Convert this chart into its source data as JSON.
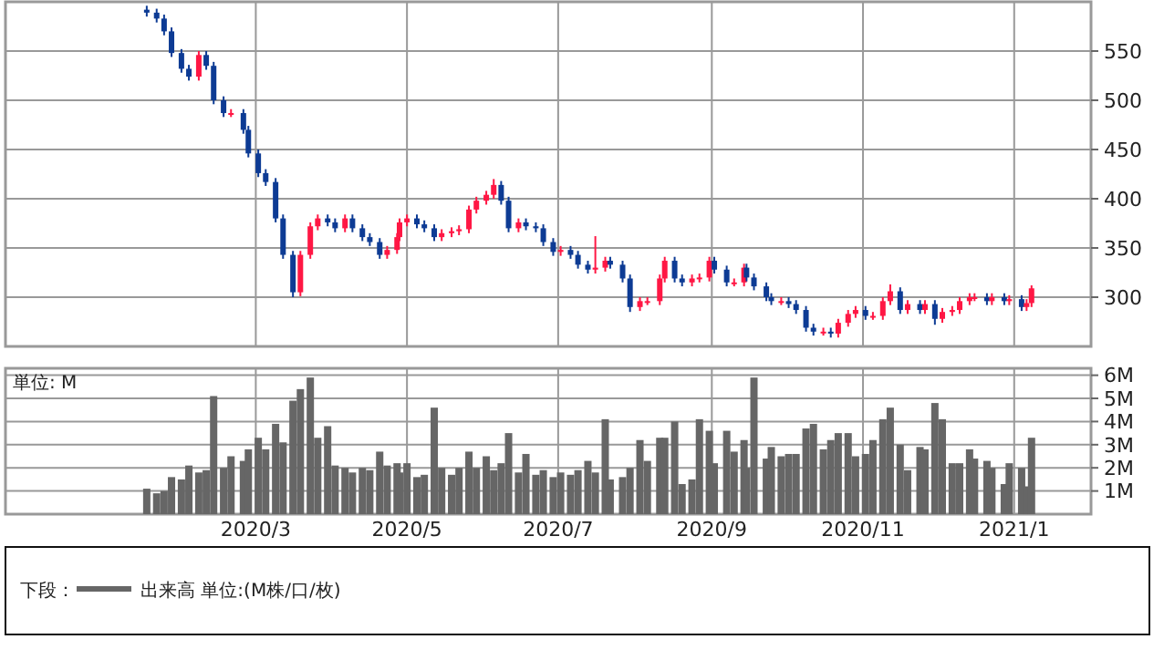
{
  "chart_data": [
    {
      "type": "candlestick",
      "xlim": [
        "2019-11-21",
        "2021-02-01"
      ],
      "ylim": [
        250,
        600
      ],
      "yticks": [
        300,
        350,
        400,
        450,
        500,
        550
      ],
      "grid": true,
      "tick_labels": "y",
      "xticks": [
        "2020-03-01",
        "2020-05-01",
        "2020-07-01",
        "2020-09-01",
        "2020-11-01",
        "2021-01-01"
      ],
      "x": [
        "2020-01-17",
        "2020-01-21",
        "2020-01-24",
        "2020-01-27",
        "2020-01-31",
        "2020-02-03",
        "2020-02-07",
        "2020-02-10",
        "2020-02-13",
        "2020-02-17",
        "2020-02-20",
        "2020-02-25",
        "2020-02-27",
        "2020-03-02",
        "2020-03-05",
        "2020-03-09",
        "2020-03-12",
        "2020-03-16",
        "2020-03-19",
        "2020-03-23",
        "2020-03-26",
        "2020-03-30",
        "2020-04-02",
        "2020-04-06",
        "2020-04-09",
        "2020-04-13",
        "2020-04-16",
        "2020-04-20",
        "2020-04-23",
        "2020-04-27",
        "2020-04-28",
        "2020-05-01",
        "2020-05-05",
        "2020-05-08",
        "2020-05-12",
        "2020-05-15",
        "2020-05-19",
        "2020-05-22",
        "2020-05-26",
        "2020-05-29",
        "2020-06-02",
        "2020-06-05",
        "2020-06-08",
        "2020-06-11",
        "2020-06-15",
        "2020-06-18",
        "2020-06-22",
        "2020-06-25",
        "2020-06-29",
        "2020-07-02",
        "2020-07-06",
        "2020-07-09",
        "2020-07-13",
        "2020-07-16",
        "2020-07-20",
        "2020-07-22",
        "2020-07-27",
        "2020-07-30",
        "2020-08-03",
        "2020-08-06",
        "2020-08-11",
        "2020-08-13",
        "2020-08-17",
        "2020-08-20",
        "2020-08-24",
        "2020-08-27",
        "2020-08-31",
        "2020-09-02",
        "2020-09-07",
        "2020-09-10",
        "2020-09-14",
        "2020-09-15",
        "2020-09-18",
        "2020-09-23",
        "2020-09-25",
        "2020-09-29",
        "2020-10-02",
        "2020-10-05",
        "2020-10-09",
        "2020-10-12",
        "2020-10-16",
        "2020-10-19",
        "2020-10-22",
        "2020-10-26",
        "2020-10-29",
        "2020-11-02",
        "2020-11-05",
        "2020-11-09",
        "2020-11-12",
        "2020-11-16",
        "2020-11-19",
        "2020-11-24",
        "2020-11-26",
        "2020-11-30",
        "2020-12-03",
        "2020-12-07",
        "2020-12-10",
        "2020-12-14",
        "2020-12-16",
        "2020-12-21",
        "2020-12-23",
        "2020-12-28",
        "2020-12-30",
        "2021-01-04",
        "2021-01-06",
        "2021-01-08"
      ],
      "ohlc": [
        [
          592,
          596,
          585,
          589
        ],
        [
          589,
          593,
          579,
          583
        ],
        [
          583,
          587,
          566,
          570
        ],
        [
          570,
          574,
          544,
          548
        ],
        [
          548,
          552,
          528,
          532
        ],
        [
          532,
          536,
          520,
          524
        ],
        [
          524,
          550,
          520,
          546
        ],
        [
          546,
          550,
          531,
          535
        ],
        [
          535,
          539,
          496,
          500
        ],
        [
          500,
          504,
          483,
          487
        ],
        [
          487,
          491,
          483,
          487
        ],
        [
          487,
          491,
          466,
          470
        ],
        [
          470,
          474,
          442,
          446
        ],
        [
          446,
          450,
          422,
          426
        ],
        [
          426,
          430,
          413,
          417
        ],
        [
          417,
          421,
          376,
          380
        ],
        [
          380,
          384,
          339,
          343
        ],
        [
          343,
          347,
          300,
          305
        ],
        [
          305,
          347,
          301,
          343
        ],
        [
          343,
          376,
          339,
          372
        ],
        [
          372,
          384,
          368,
          380
        ],
        [
          380,
          384,
          372,
          376
        ],
        [
          376,
          380,
          366,
          370
        ],
        [
          370,
          384,
          366,
          380
        ],
        [
          380,
          384,
          366,
          370
        ],
        [
          370,
          374,
          357,
          361
        ],
        [
          361,
          365,
          352,
          356
        ],
        [
          356,
          360,
          339,
          343
        ],
        [
          343,
          352,
          339,
          348
        ],
        [
          348,
          365,
          344,
          361
        ],
        [
          361,
          380,
          357,
          376
        ],
        [
          376,
          384,
          372,
          380
        ],
        [
          380,
          384,
          370,
          374
        ],
        [
          374,
          378,
          366,
          370
        ],
        [
          370,
          374,
          357,
          361
        ],
        [
          361,
          369,
          357,
          365
        ],
        [
          365,
          371,
          361,
          367
        ],
        [
          367,
          373,
          363,
          369
        ],
        [
          369,
          393,
          365,
          389
        ],
        [
          389,
          402,
          385,
          398
        ],
        [
          398,
          408,
          394,
          404
        ],
        [
          404,
          420,
          400,
          414
        ],
        [
          414,
          418,
          394,
          398
        ],
        [
          398,
          402,
          366,
          370
        ],
        [
          370,
          380,
          366,
          376
        ],
        [
          376,
          380,
          368,
          372
        ],
        [
          372,
          376,
          366,
          370
        ],
        [
          370,
          374,
          352,
          356
        ],
        [
          356,
          360,
          342,
          346
        ],
        [
          346,
          352,
          342,
          348
        ],
        [
          348,
          352,
          339,
          343
        ],
        [
          343,
          347,
          329,
          333
        ],
        [
          333,
          337,
          324,
          328
        ],
        [
          328,
          362,
          324,
          330
        ],
        [
          330,
          341,
          326,
          337
        ],
        [
          337,
          341,
          329,
          333
        ],
        [
          333,
          337,
          315,
          319
        ],
        [
          319,
          323,
          285,
          290
        ],
        [
          290,
          300,
          286,
          296
        ],
        [
          296,
          300,
          292,
          296
        ],
        [
          296,
          323,
          292,
          319
        ],
        [
          319,
          341,
          315,
          337
        ],
        [
          337,
          341,
          315,
          319
        ],
        [
          319,
          323,
          311,
          315
        ],
        [
          315,
          323,
          311,
          319
        ],
        [
          319,
          324,
          315,
          320
        ],
        [
          320,
          341,
          316,
          337
        ],
        [
          337,
          341,
          324,
          328
        ],
        [
          328,
          332,
          311,
          315
        ],
        [
          315,
          319,
          311,
          315
        ],
        [
          315,
          334,
          311,
          330
        ],
        [
          330,
          334,
          316,
          320
        ],
        [
          320,
          324,
          307,
          311
        ],
        [
          311,
          315,
          296,
          300
        ],
        [
          300,
          304,
          292,
          296
        ],
        [
          296,
          300,
          292,
          296
        ],
        [
          296,
          300,
          289,
          293
        ],
        [
          293,
          297,
          283,
          287
        ],
        [
          287,
          291,
          265,
          269
        ],
        [
          269,
          273,
          261,
          265
        ],
        [
          265,
          269,
          261,
          265
        ],
        [
          265,
          269,
          259,
          263
        ],
        [
          263,
          278,
          259,
          274
        ],
        [
          274,
          287,
          270,
          283
        ],
        [
          283,
          291,
          279,
          287
        ],
        [
          287,
          291,
          277,
          281
        ],
        [
          281,
          285,
          277,
          281
        ],
        [
          281,
          300,
          277,
          296
        ],
        [
          296,
          313,
          292,
          306
        ],
        [
          306,
          310,
          283,
          287
        ],
        [
          287,
          297,
          283,
          293
        ],
        [
          293,
          297,
          283,
          287
        ],
        [
          287,
          297,
          283,
          293
        ],
        [
          293,
          297,
          272,
          278
        ],
        [
          278,
          289,
          274,
          285
        ],
        [
          285,
          291,
          281,
          287
        ],
        [
          287,
          300,
          283,
          296
        ],
        [
          296,
          304,
          292,
          300
        ],
        [
          300,
          304,
          296,
          300
        ],
        [
          300,
          304,
          292,
          296
        ],
        [
          296,
          304,
          292,
          300
        ],
        [
          300,
          304,
          292,
          296
        ],
        [
          296,
          302,
          292,
          298
        ],
        [
          298,
          302,
          286,
          290
        ],
        [
          290,
          298,
          286,
          294
        ],
        [
          294,
          312,
          290,
          309
        ]
      ]
    },
    {
      "type": "bar",
      "xlim": [
        "2019-11-21",
        "2021-02-01"
      ],
      "ylim": [
        0,
        6.3
      ],
      "grid": true,
      "legend": "bottom",
      "legend_title": "下段：",
      "annotations": [
        "単位: M"
      ],
      "yticks": [
        {
          "value": 1,
          "label": "1M"
        },
        {
          "value": 2,
          "label": "2M"
        },
        {
          "value": 3,
          "label": "3M"
        },
        {
          "value": 4,
          "label": "4M"
        },
        {
          "value": 5,
          "label": "5M"
        },
        {
          "value": 6,
          "label": "6M"
        }
      ],
      "xticks": [
        {
          "value": "2020-03-01",
          "label": "2020/3"
        },
        {
          "value": "2020-05-01",
          "label": "2020/5"
        },
        {
          "value": "2020-07-01",
          "label": "2020/7"
        },
        {
          "value": "2020-09-01",
          "label": "2020/9"
        },
        {
          "value": "2020-11-01",
          "label": "2020/11"
        },
        {
          "value": "2021-01-01",
          "label": "2021/1"
        }
      ],
      "x": [
        "2020-01-17",
        "2020-01-21",
        "2020-01-24",
        "2020-01-27",
        "2020-01-31",
        "2020-02-03",
        "2020-02-07",
        "2020-02-10",
        "2020-02-13",
        "2020-02-17",
        "2020-02-20",
        "2020-02-25",
        "2020-02-27",
        "2020-03-02",
        "2020-03-05",
        "2020-03-09",
        "2020-03-12",
        "2020-03-16",
        "2020-03-19",
        "2020-03-23",
        "2020-03-26",
        "2020-03-30",
        "2020-04-02",
        "2020-04-06",
        "2020-04-09",
        "2020-04-13",
        "2020-04-16",
        "2020-04-20",
        "2020-04-23",
        "2020-04-27",
        "2020-04-28",
        "2020-05-01",
        "2020-05-05",
        "2020-05-08",
        "2020-05-12",
        "2020-05-15",
        "2020-05-19",
        "2020-05-22",
        "2020-05-26",
        "2020-05-29",
        "2020-06-02",
        "2020-06-05",
        "2020-06-08",
        "2020-06-11",
        "2020-06-15",
        "2020-06-18",
        "2020-06-22",
        "2020-06-25",
        "2020-06-29",
        "2020-07-02",
        "2020-07-06",
        "2020-07-09",
        "2020-07-13",
        "2020-07-16",
        "2020-07-20",
        "2020-07-22",
        "2020-07-27",
        "2020-07-30",
        "2020-08-03",
        "2020-08-06",
        "2020-08-11",
        "2020-08-13",
        "2020-08-17",
        "2020-08-20",
        "2020-08-24",
        "2020-08-27",
        "2020-08-31",
        "2020-09-02",
        "2020-09-07",
        "2020-09-10",
        "2020-09-14",
        "2020-09-15",
        "2020-09-18",
        "2020-09-23",
        "2020-09-25",
        "2020-09-29",
        "2020-10-02",
        "2020-10-05",
        "2020-10-09",
        "2020-10-12",
        "2020-10-16",
        "2020-10-19",
        "2020-10-22",
        "2020-10-26",
        "2020-10-29",
        "2020-11-02",
        "2020-11-05",
        "2020-11-09",
        "2020-11-12",
        "2020-11-16",
        "2020-11-19",
        "2020-11-24",
        "2020-11-26",
        "2020-11-30",
        "2020-12-03",
        "2020-12-07",
        "2020-12-10",
        "2020-12-14",
        "2020-12-16",
        "2020-12-21",
        "2020-12-23",
        "2020-12-28",
        "2020-12-30",
        "2021-01-04",
        "2021-01-06",
        "2021-01-08"
      ],
      "series": [
        {
          "name": "出来高 単位:(M株/口/枚)",
          "color": "#666666",
          "values": [
            1.1,
            0.9,
            1.0,
            1.6,
            1.5,
            2.1,
            1.8,
            1.9,
            5.1,
            2.0,
            2.5,
            2.3,
            2.8,
            3.3,
            2.8,
            3.9,
            3.1,
            4.9,
            5.4,
            5.9,
            3.3,
            3.8,
            2.1,
            2.0,
            1.8,
            2.0,
            1.9,
            2.7,
            2.1,
            2.2,
            1.8,
            2.2,
            1.6,
            1.7,
            4.6,
            2.0,
            1.7,
            2.0,
            2.7,
            2.0,
            2.5,
            1.9,
            2.2,
            3.5,
            1.8,
            2.6,
            1.7,
            1.9,
            1.6,
            1.8,
            1.7,
            1.9,
            2.3,
            1.8,
            4.1,
            1.5,
            1.6,
            2.0,
            3.2,
            2.3,
            3.3,
            3.3,
            4.0,
            1.3,
            1.5,
            4.1,
            3.6,
            2.2,
            3.6,
            2.7,
            3.2,
            2.0,
            5.9,
            2.4,
            2.9,
            2.5,
            2.6,
            2.6,
            3.7,
            3.9,
            2.8,
            3.2,
            3.5,
            3.5,
            2.5,
            2.6,
            3.2,
            4.1,
            4.6,
            3.0,
            1.9,
            2.9,
            2.8,
            4.8,
            4.1,
            2.2,
            2.2,
            2.8,
            2.4,
            2.3,
            2.0,
            1.3,
            2.2,
            2.0,
            1.2,
            3.3
          ]
        }
      ]
    }
  ]
}
